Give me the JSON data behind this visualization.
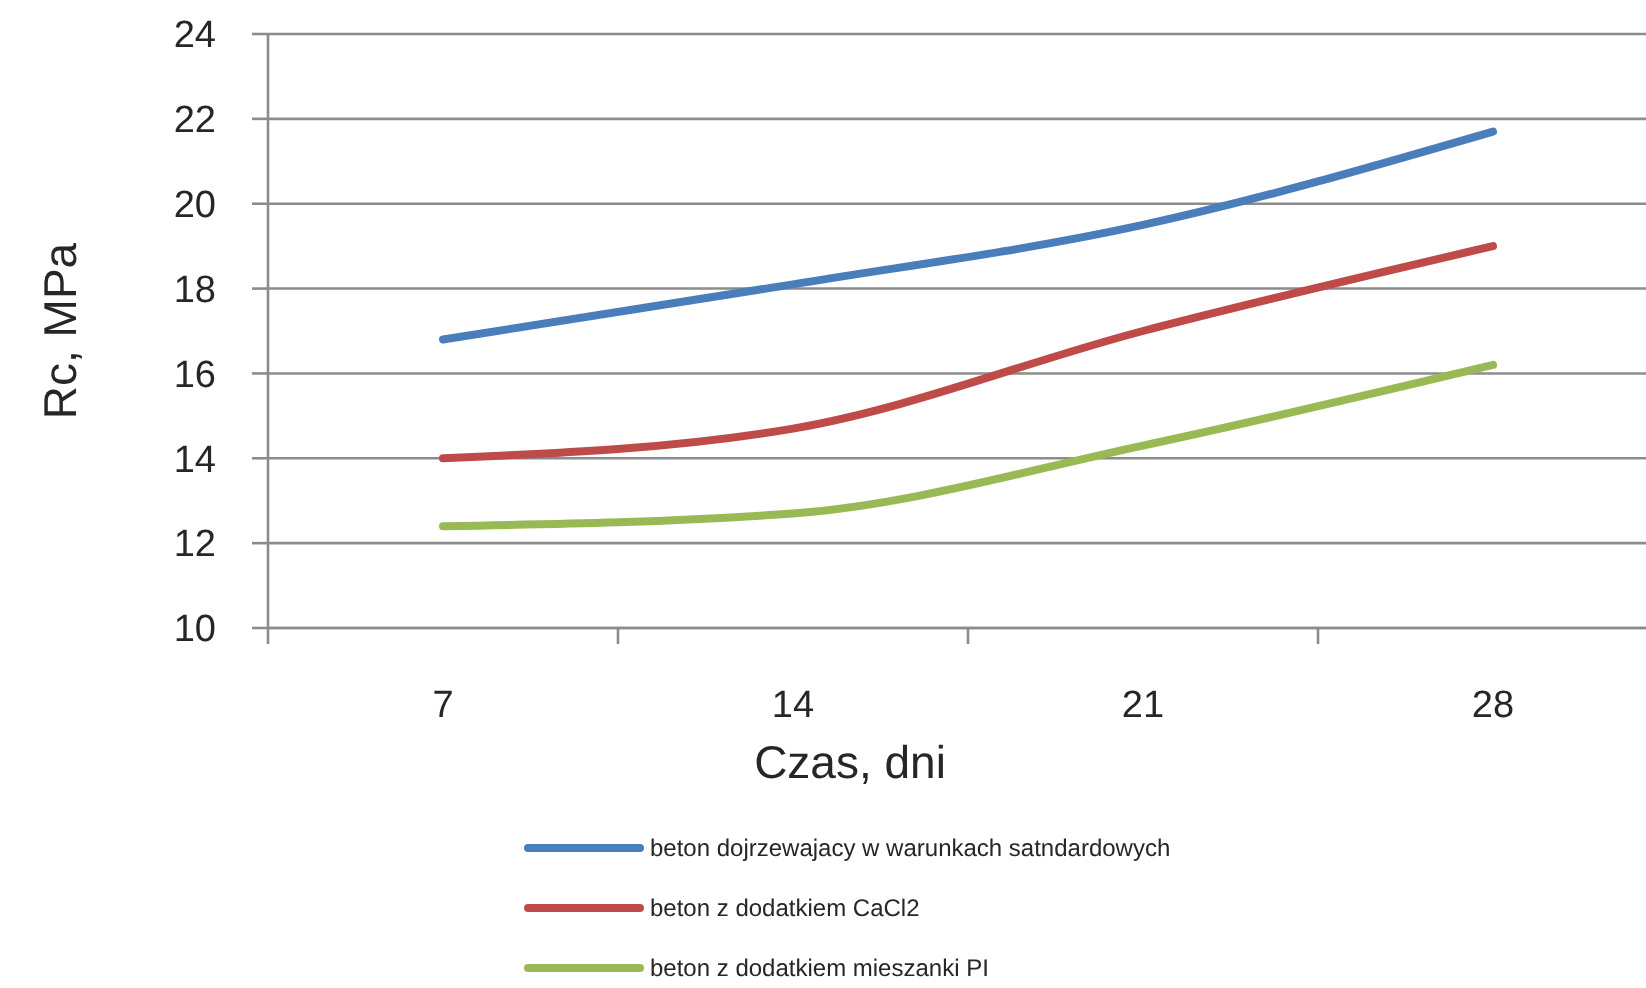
{
  "chart_data": {
    "type": "line",
    "xlabel": "Czas, dni",
    "ylabel": "Rc, MPa",
    "categories": [
      "7",
      "14",
      "21",
      "28"
    ],
    "series": [
      {
        "name": "beton dojrzewajacy w warunkach satndardowych",
        "color": "#4a7ebb",
        "values": [
          16.8,
          18.1,
          19.5,
          21.7
        ]
      },
      {
        "name": "beton z dodatkiem CaCl2",
        "color": "#be4b48",
        "values": [
          14.0,
          14.7,
          17.0,
          19.0
        ]
      },
      {
        "name": "beton z dodatkiem mieszanki PI",
        "color": "#98b954",
        "values": [
          12.4,
          12.7,
          14.3,
          16.2
        ]
      }
    ],
    "ylim": [
      10,
      24
    ],
    "yticks": [
      10,
      12,
      14,
      16,
      18,
      20,
      22,
      24
    ],
    "grid": "y",
    "legend": "bottom",
    "marker": "none",
    "line_style": "solid"
  }
}
